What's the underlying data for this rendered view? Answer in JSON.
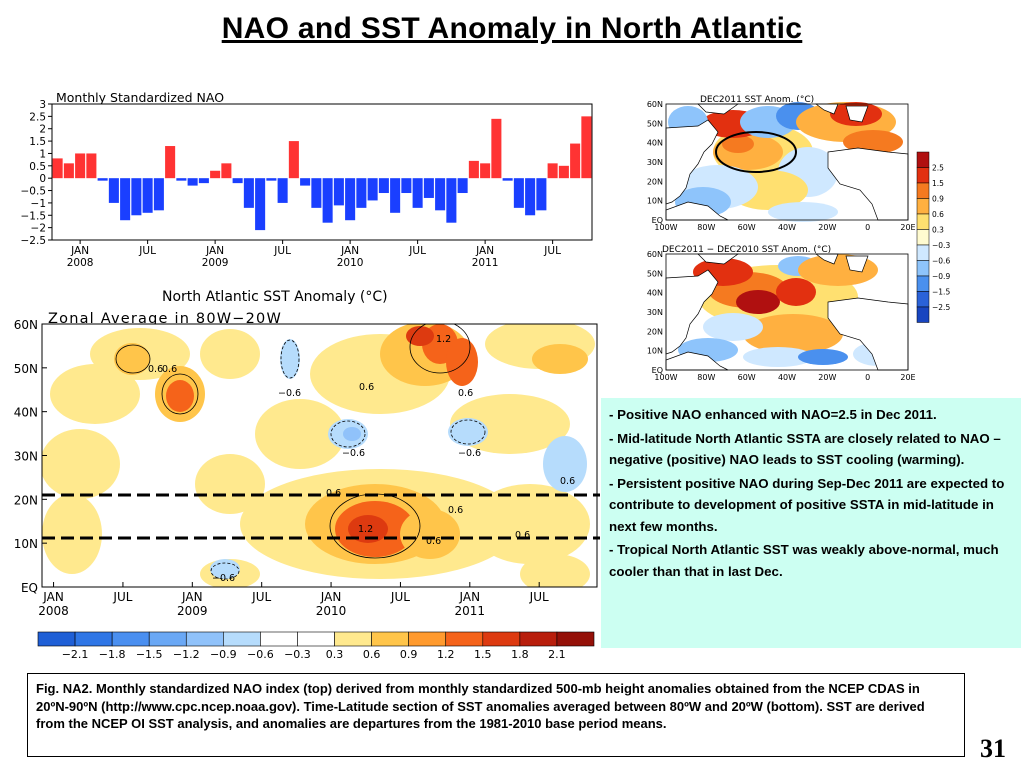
{
  "title": "NAO and SST Anomaly in North Atlantic",
  "nao_chart": {
    "title": "Monthly Standardized NAO",
    "y_ticks": [
      "3",
      "2.5",
      "2",
      "1.5",
      "1",
      "0.5",
      "0",
      "−0.5",
      "−1",
      "−1.5",
      "−2",
      "−2.5"
    ],
    "x_ticks": [
      {
        "month": "JAN",
        "year": "2008"
      },
      {
        "month": "JUL",
        "year": ""
      },
      {
        "month": "JAN",
        "year": "2009"
      },
      {
        "month": "JUL",
        "year": ""
      },
      {
        "month": "JAN",
        "year": "2010"
      },
      {
        "month": "JUL",
        "year": ""
      },
      {
        "month": "JAN",
        "year": "2011"
      },
      {
        "month": "JUL",
        "year": ""
      }
    ],
    "positive_color": "#ff3333",
    "negative_color": "#1a3fff"
  },
  "chart_data": {
    "type": "bar",
    "title": "Monthly Standardized NAO",
    "start": "2008-01",
    "categories_freq": "monthly",
    "ylim": [
      -2.5,
      3
    ],
    "values": [
      0.8,
      0.6,
      1.0,
      1.0,
      -0.1,
      -1.0,
      -1.7,
      -1.5,
      -1.4,
      -1.3,
      1.3,
      -0.1,
      -0.3,
      -0.2,
      0.3,
      0.6,
      -0.2,
      -1.2,
      -2.1,
      -0.1,
      -1.0,
      1.5,
      -0.3,
      -1.2,
      -1.8,
      -1.1,
      -1.7,
      -1.2,
      -0.9,
      -0.6,
      -1.4,
      -0.6,
      -1.2,
      -0.8,
      -1.3,
      -1.8,
      -0.6,
      0.7,
      0.6,
      2.4,
      -0.1,
      -1.2,
      -1.5,
      -1.3,
      0.6,
      0.5,
      1.4,
      2.5
    ],
    "grid": false
  },
  "zonal": {
    "title": "North Atlantic SST Anomaly (°C)",
    "subtitle": "Zonal Average in 80W−20W",
    "y_ticks": [
      "60N",
      "50N",
      "40N",
      "30N",
      "20N",
      "10N",
      "EQ"
    ],
    "x_ticks": [
      {
        "month": "JAN",
        "year": "2008"
      },
      {
        "month": "JUL",
        "year": ""
      },
      {
        "month": "JAN",
        "year": "2009"
      },
      {
        "month": "JUL",
        "year": ""
      },
      {
        "month": "JAN",
        "year": "2010"
      },
      {
        "month": "JUL",
        "year": ""
      },
      {
        "month": "JAN",
        "year": "2011"
      },
      {
        "month": "JUL",
        "year": ""
      }
    ],
    "labels": [
      "0.6",
      "0.6",
      "1.2",
      "0.6",
      "0.6",
      "−0.6",
      "0.6",
      "−0.6",
      "−0.6",
      "0.6",
      "0.6",
      "1.2",
      "0.6",
      "0.6",
      "−0.6"
    ],
    "colorbar": {
      "labels": [
        "−2.1",
        "−1.8",
        "−1.5",
        "−1.2",
        "−0.9",
        "−0.6",
        "−0.3",
        "0.3",
        "0.6",
        "0.9",
        "1.2",
        "1.5",
        "1.8",
        "2.1"
      ],
      "colors": [
        "#1f5fd6",
        "#2f76e6",
        "#4a8ff0",
        "#6aa8f5",
        "#90c2fa",
        "#b6dcfc",
        "#ffffff",
        "#ffffff",
        "#ffe98e",
        "#ffc54a",
        "#ff9a2e",
        "#f5631a",
        "#dd3a10",
        "#b81e0c",
        "#941008"
      ]
    }
  },
  "map1": {
    "title": "DEC2011  SST Anom. (°C)",
    "lat_labels": [
      "60N",
      "50N",
      "40N",
      "30N",
      "20N",
      "10N",
      "EQ"
    ],
    "lon_labels": [
      "100W",
      "80W",
      "60W",
      "40W",
      "20W",
      "0",
      "20E"
    ]
  },
  "map2": {
    "title": "DEC2011 − DEC2010 SST Anom. (°C)",
    "lat_labels": [
      "60N",
      "50N",
      "40N",
      "30N",
      "20N",
      "10N",
      "EQ"
    ],
    "lon_labels": [
      "100W",
      "80W",
      "60W",
      "40W",
      "20W",
      "0",
      "20E"
    ]
  },
  "map_legend": {
    "labels": [
      "2.5",
      "1.5",
      "0.9",
      "0.6",
      "0.3",
      "−0.3",
      "−0.6",
      "−0.9",
      "−1.5",
      "−2.5"
    ],
    "colors": [
      "#b01010",
      "#e23010",
      "#f57a20",
      "#ffb040",
      "#ffe070",
      "#fffbd0",
      "#cfe8ff",
      "#8ec4fb",
      "#4a90ee",
      "#2a62d8",
      "#1845c0"
    ]
  },
  "notes": [
    "Positive NAO enhanced with NAO=2.5 in Dec 2011.",
    "Mid-latitude North Atlantic SSTA are closely related to NAO – negative (positive) NAO leads to SST cooling (warming).",
    "Persistent positive NAO during Sep-Dec 2011 are expected to contribute to development of  positive SSTA in mid-latitude in next few months.",
    "Tropical North Atlantic SST was weakly above-normal, much cooler than that in last Dec."
  ],
  "caption": "Fig. NA2. Monthly standardized NAO index (top) derived from monthly standardized 500-mb height anomalies obtained from the NCEP CDAS in 20ºN-90ºN (http://www.cpc.ncep.noaa.gov).  Time-Latitude section of SST anomalies averaged between 80ºW and 20ºW (bottom). SST are derived from the NCEP OI SST analysis, and anomalies are departures from the 1981-2010 base period means.",
  "page_number": "31"
}
